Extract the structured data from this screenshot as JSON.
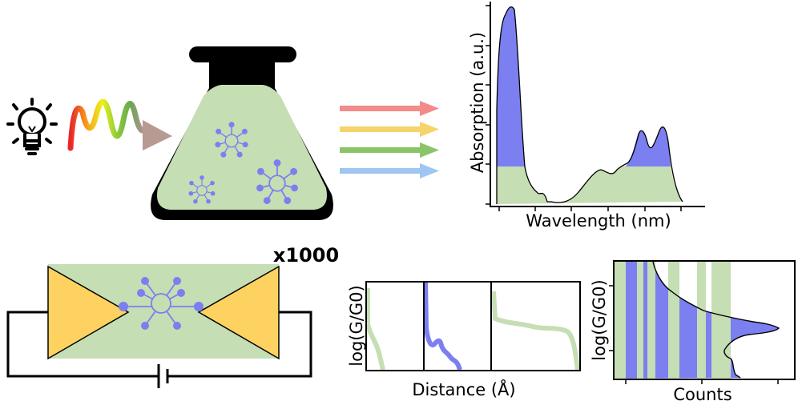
{
  "top": {
    "spectrum": {
      "ylabel": "Absorption (a.u.)",
      "xlabel": "Wavelength (nm)"
    }
  },
  "bottom": {
    "junction": {
      "repeat_label": "x1000"
    },
    "traces": {
      "ylabel": "log(G/G0)",
      "xlabel": "Distance (Å)"
    },
    "histogram": {
      "ylabel": "log(G/G0)",
      "xlabel": "Counts"
    }
  },
  "colors": {
    "green": "#c5deb4",
    "blue": "#7b7ff0",
    "gold": "#fdd260",
    "black": "#000000"
  }
}
